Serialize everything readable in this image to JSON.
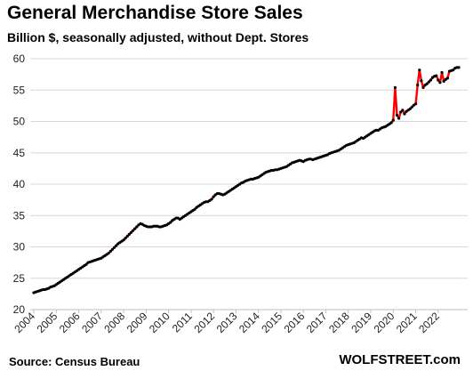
{
  "header": {
    "title": "General Merchandise Store Sales",
    "subtitle": "Billion $, seasonally adjusted, without Dept. Stores"
  },
  "footer": {
    "source": "Source: Census Bureau",
    "brand": "WOLFSTREET.com"
  },
  "colors": {
    "line": "#ff0000",
    "markers": "#000000",
    "grid": "#d9d9d9",
    "axis": "#bfbfbf"
  },
  "chart_data": {
    "type": "line",
    "title": "General Merchandise Store Sales",
    "subtitle": "Billion $, seasonally adjusted, without Dept. Stores",
    "xlabel": "",
    "ylabel": "",
    "ylim": [
      20,
      60
    ],
    "yticks": [
      20,
      25,
      30,
      35,
      40,
      45,
      50,
      55,
      60
    ],
    "x_tick_labels": [
      "2004",
      "2005",
      "2006",
      "2007",
      "2008",
      "2009",
      "2010",
      "2011",
      "2012",
      "2013",
      "2014",
      "2015",
      "2016",
      "2017",
      "2018",
      "2019",
      "2020",
      "2021",
      "2022"
    ],
    "grid": "horizontal",
    "legend": "none",
    "series": [
      {
        "frequency": "monthly",
        "start": "2004-01",
        "values": [
          22.7,
          22.8,
          22.9,
          23.0,
          23.1,
          23.2,
          23.2,
          23.3,
          23.4,
          23.6,
          23.7,
          23.8,
          24.0,
          24.2,
          24.4,
          24.6,
          24.8,
          25.0,
          25.2,
          25.4,
          25.6,
          25.8,
          26.0,
          26.2,
          26.4,
          26.6,
          26.8,
          27.0,
          27.2,
          27.5,
          27.6,
          27.7,
          27.8,
          27.9,
          28.0,
          28.1,
          28.2,
          28.4,
          28.6,
          28.8,
          29.0,
          29.3,
          29.6,
          29.9,
          30.2,
          30.5,
          30.7,
          30.9,
          31.1,
          31.4,
          31.7,
          32.0,
          32.3,
          32.6,
          32.9,
          33.2,
          33.5,
          33.7,
          33.6,
          33.4,
          33.3,
          33.2,
          33.2,
          33.2,
          33.3,
          33.3,
          33.3,
          33.2,
          33.2,
          33.3,
          33.4,
          33.5,
          33.7,
          33.9,
          34.2,
          34.4,
          34.6,
          34.6,
          34.4,
          34.6,
          34.8,
          35.0,
          35.2,
          35.4,
          35.6,
          35.8,
          36.0,
          36.3,
          36.5,
          36.7,
          36.9,
          37.1,
          37.2,
          37.2,
          37.4,
          37.6,
          38.0,
          38.3,
          38.5,
          38.5,
          38.4,
          38.3,
          38.4,
          38.6,
          38.8,
          39.0,
          39.2,
          39.4,
          39.6,
          39.8,
          40.0,
          40.2,
          40.3,
          40.5,
          40.6,
          40.7,
          40.8,
          40.8,
          40.9,
          41.0,
          41.1,
          41.3,
          41.5,
          41.7,
          41.9,
          42.0,
          42.1,
          42.2,
          42.2,
          42.3,
          42.3,
          42.4,
          42.5,
          42.6,
          42.7,
          42.8,
          43.0,
          43.2,
          43.4,
          43.5,
          43.6,
          43.7,
          43.8,
          43.7,
          43.6,
          43.8,
          43.9,
          44.0,
          44.0,
          43.9,
          44.0,
          44.1,
          44.2,
          44.3,
          44.4,
          44.5,
          44.6,
          44.7,
          44.9,
          45.0,
          45.1,
          45.2,
          45.3,
          45.4,
          45.6,
          45.8,
          46.0,
          46.2,
          46.3,
          46.4,
          46.5,
          46.6,
          46.8,
          47.0,
          47.2,
          47.4,
          47.3,
          47.5,
          47.7,
          47.9,
          48.1,
          48.3,
          48.5,
          48.6,
          48.6,
          48.8,
          49.0,
          49.1,
          49.2,
          49.4,
          49.6,
          49.8,
          50.2,
          55.4,
          51.0,
          50.5,
          51.5,
          51.8,
          51.2,
          51.6,
          51.8,
          52.0,
          52.3,
          52.6,
          52.8,
          55.8,
          58.2,
          56.5,
          55.4,
          55.8,
          56.0,
          56.3,
          56.6,
          57.0,
          57.2,
          57.3,
          56.6,
          56.2,
          57.8,
          56.4,
          56.7,
          56.9,
          58.0,
          58.1,
          58.2,
          58.5,
          58.6,
          58.6
        ]
      }
    ]
  }
}
